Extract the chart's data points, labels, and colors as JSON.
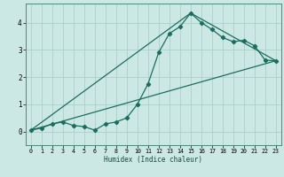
{
  "xlabel": "Humidex (Indice chaleur)",
  "background_color": "#cce8e4",
  "grid_color": "#aacfca",
  "line_color": "#1a6e60",
  "xlim": [
    -0.5,
    23.5
  ],
  "ylim": [
    -0.5,
    4.7
  ],
  "x_ticks": [
    0,
    1,
    2,
    3,
    4,
    5,
    6,
    7,
    8,
    9,
    10,
    11,
    12,
    13,
    14,
    15,
    16,
    17,
    18,
    19,
    20,
    21,
    22,
    23
  ],
  "y_ticks": [
    0,
    1,
    2,
    3,
    4
  ],
  "line1_x": [
    0,
    1,
    2,
    3,
    4,
    5,
    6,
    7,
    8,
    9,
    10,
    11,
    12,
    13,
    14,
    15,
    16,
    17,
    18,
    19,
    20,
    21,
    22,
    23
  ],
  "line1_y": [
    0.05,
    0.13,
    0.28,
    0.35,
    0.22,
    0.18,
    0.05,
    0.28,
    0.35,
    0.5,
    1.0,
    1.75,
    2.9,
    3.6,
    3.85,
    4.35,
    4.0,
    3.75,
    3.45,
    3.3,
    3.35,
    3.15,
    2.62,
    2.6
  ],
  "line2_x": [
    0,
    23
  ],
  "line2_y": [
    0.05,
    2.6
  ],
  "line3_x": [
    0,
    15,
    23
  ],
  "line3_y": [
    0.05,
    4.35,
    2.6
  ]
}
